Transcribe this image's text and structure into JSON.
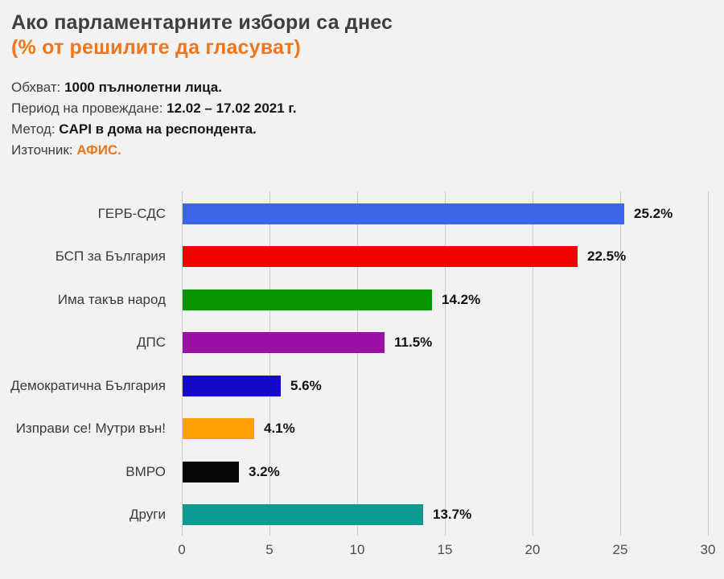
{
  "header": {
    "title": "Ако парламентарните избори са днес",
    "subtitle": "(% от решилите да гласуват)",
    "title_color": "#3e3e3e",
    "subtitle_color": "#f0761c"
  },
  "meta": {
    "highlight_color": "#f0761c",
    "lines": [
      {
        "label": "Обхват:",
        "value": "1000 пълнолетни лица.",
        "highlight": false
      },
      {
        "label": "Период на провеждане:",
        "value": "12.02 – 17.02 2021 г.",
        "highlight": false
      },
      {
        "label": "Метод:",
        "value": "CAPI в дома на респондента.",
        "highlight": false
      },
      {
        "label": "Източник:",
        "value": "АФИС.",
        "highlight": true
      }
    ]
  },
  "chart_data": {
    "type": "bar",
    "orientation": "horizontal",
    "title": "Ако парламентарните избори са днес (% от решилите да гласуват)",
    "categories": [
      "ГЕРБ-СДС",
      "БСП за България",
      "Има такъв народ",
      "ДПС",
      "Демократична България",
      "Изправи се! Мутри вън!",
      "ВМРО",
      "Други"
    ],
    "values": [
      25.2,
      22.5,
      14.2,
      11.5,
      5.6,
      4.1,
      3.2,
      13.7
    ],
    "value_labels": [
      "25.2%",
      "22.5%",
      "14.2%",
      "11.5%",
      "5.6%",
      "4.1%",
      "3.2%",
      "13.7%"
    ],
    "bar_colors": [
      "#3c64e6",
      "#f40000",
      "#0a9600",
      "#9b0fa5",
      "#1508c8",
      "#ffa005",
      "#060606",
      "#0e9a92"
    ],
    "xlabel": "",
    "ylabel": "",
    "xlim": [
      0,
      30
    ],
    "xticks": [
      0,
      5,
      10,
      15,
      20,
      25,
      30
    ],
    "grid": true,
    "gridline_color": "#cccccc",
    "background_color": "#f2f2f2",
    "legend": "none"
  }
}
